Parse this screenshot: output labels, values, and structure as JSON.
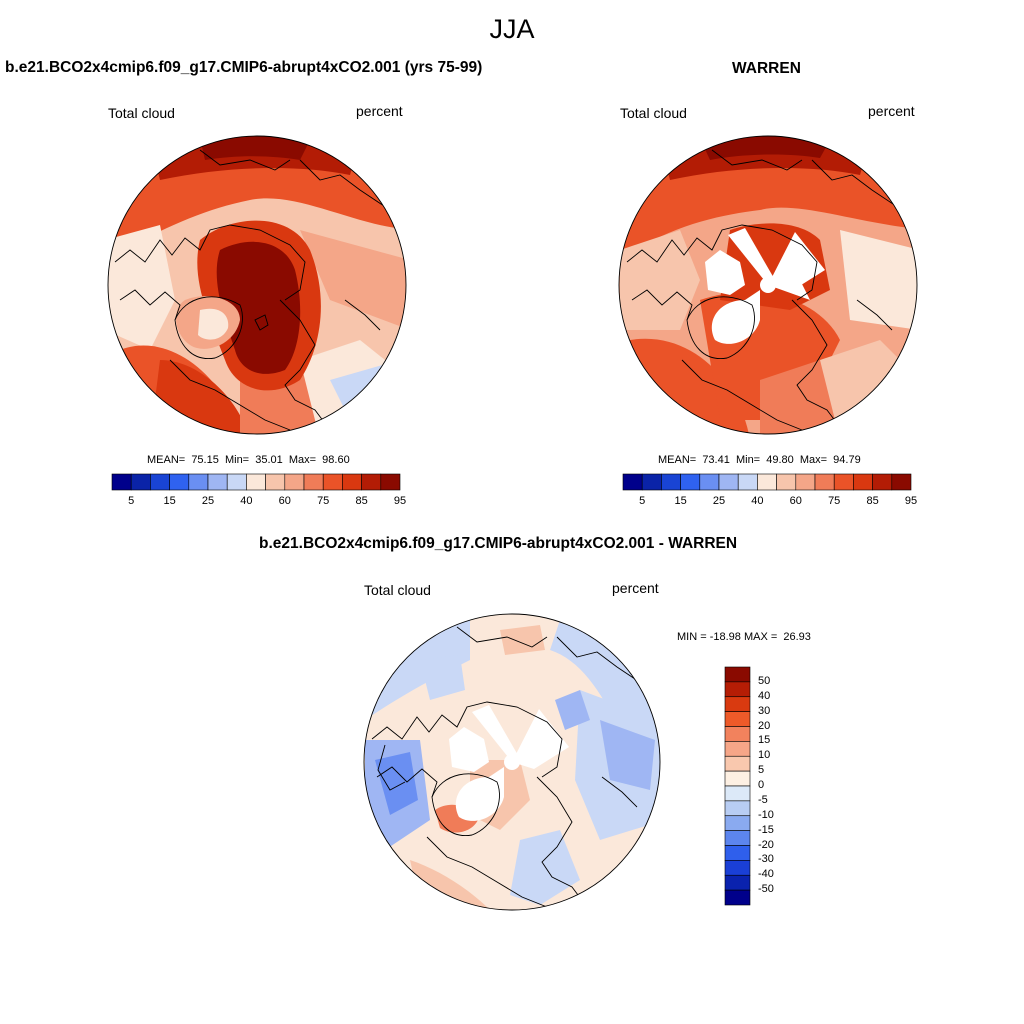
{
  "figure": {
    "title": "JJA"
  },
  "panels": {
    "model": {
      "title": "b.e21.BCO2x4cmip6.f09_g17.CMIP6-abrupt4xCO2.001 (yrs 75-99)",
      "left_label": "Total cloud",
      "right_label": "percent",
      "stats": "MEAN=  75.15  Min=  35.01  Max=  98.60"
    },
    "obs": {
      "title": "WARREN",
      "left_label": "Total cloud",
      "right_label": "percent",
      "stats": "MEAN=  73.41  Min=  49.80  Max=  94.79"
    },
    "diff": {
      "title": "b.e21.BCO2x4cmip6.f09_g17.CMIP6-abrupt4xCO2.001 - WARREN",
      "left_label": "Total cloud",
      "right_label": "percent",
      "stats": "MIN = -18.98 MAX =  26.93"
    }
  },
  "colorbars": {
    "absolute": {
      "colors": [
        "#00008b",
        "#0a23a8",
        "#1944d4",
        "#2f62f0",
        "#6a8ff2",
        "#9fb6f3",
        "#c9d8f6",
        "#fbe8da",
        "#f7c5ac",
        "#f4a688",
        "#f07c58",
        "#ea5328",
        "#d93810",
        "#b31c05",
        "#8a0a00"
      ],
      "tick_labels": [
        "5",
        "15",
        "25",
        "40",
        "60",
        "75",
        "85",
        "95"
      ]
    },
    "difference": {
      "colors": [
        "#8a0a00",
        "#b51d05",
        "#d93a10",
        "#ee5a29",
        "#f2825d",
        "#f6a688",
        "#f9c8ae",
        "#fdf0e3",
        "#dce9f8",
        "#b8cdf3",
        "#8aaaf0",
        "#5c85ee",
        "#2f5fec",
        "#1a3fd6",
        "#0a22ae",
        "#00008b"
      ],
      "tick_labels": [
        "50",
        "40",
        "30",
        "20",
        "15",
        "10",
        "5",
        "0",
        "-5",
        "-10",
        "-15",
        "-20",
        "-30",
        "-40",
        "-50"
      ]
    }
  },
  "map_legend": {
    "land_outline": "coastlines",
    "missing_data": "white"
  }
}
